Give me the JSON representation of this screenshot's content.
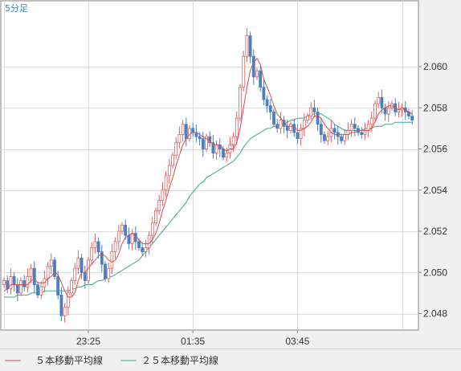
{
  "chart_data": {
    "type": "candlestick",
    "timeframe_label": "5分足",
    "x_tick_labels": [
      "23:25",
      "01:35",
      "03:45"
    ],
    "y_ticks": [
      2.048,
      2.05,
      2.052,
      2.054,
      2.056,
      2.058,
      2.06
    ],
    "y_tick_labels": [
      "2.048",
      "2.050",
      "2.052",
      "2.054",
      "2.056",
      "2.058",
      "2.060"
    ],
    "ylim": [
      2.0472,
      2.0632
    ],
    "colors": {
      "up": "#e06060",
      "down": "#4a7fc0",
      "ma5": "#d05050",
      "ma25": "#3aaa8a",
      "plot_bg": "#ffffff",
      "grid": "#dcdcdc"
    },
    "legend": [
      {
        "name": "５本移動平均線",
        "color": "#d05050"
      },
      {
        "name": "２５本移動平均線",
        "color": "#3aaa8a"
      }
    ],
    "close": [
      2.0496,
      2.0492,
      2.0498,
      2.0494,
      2.049,
      2.0496,
      2.0493,
      2.0498,
      2.0502,
      2.0494,
      2.0489,
      2.0493,
      2.0497,
      2.0503,
      2.0506,
      2.0498,
      2.0489,
      2.0479,
      2.0483,
      2.049,
      2.0496,
      2.0502,
      2.0507,
      2.05,
      2.0496,
      2.0506,
      2.0512,
      2.0515,
      2.051,
      2.0504,
      2.0497,
      2.0502,
      2.051,
      2.0515,
      2.052,
      2.0523,
      2.0518,
      2.0514,
      2.0519,
      2.0515,
      2.0512,
      2.051,
      2.0512,
      2.0518,
      2.0524,
      2.053,
      2.0535,
      2.054,
      2.0547,
      2.0552,
      2.0557,
      2.0563,
      2.0567,
      2.0572,
      2.0565,
      2.057,
      2.0568,
      2.0566,
      2.0565,
      2.056,
      2.0566,
      2.0563,
      2.0558,
      2.0562,
      2.056,
      2.0556,
      2.0558,
      2.0562,
      2.0566,
      2.0575,
      2.059,
      2.0605,
      2.0615,
      2.0605,
      2.0595,
      2.0598,
      2.059,
      2.0584,
      2.0581,
      2.0578,
      2.0572,
      2.057,
      2.0574,
      2.0571,
      2.0569,
      2.0572,
      2.0568,
      2.0565,
      2.057,
      2.0574,
      2.0576,
      2.058,
      2.0578,
      2.0572,
      2.0567,
      2.0564,
      2.0566,
      2.057,
      2.0568,
      2.0566,
      2.0564,
      2.0567,
      2.0569,
      2.0572,
      2.057,
      2.0568,
      2.0567,
      2.0569,
      2.0572,
      2.0575,
      2.0582,
      2.0585,
      2.058,
      2.0577,
      2.058,
      2.0582,
      2.0578,
      2.0579,
      2.058,
      2.0578,
      2.0576,
      2.0574
    ],
    "ma5": [
      2.0491,
      2.0492,
      2.0494,
      2.0494,
      2.0494,
      2.0494,
      2.0494,
      2.0494,
      2.0496,
      2.0497,
      2.0495,
      2.0495,
      2.0495,
      2.0497,
      2.0498,
      2.05,
      2.0499,
      2.0495,
      2.0491,
      2.0488,
      2.0488,
      2.049,
      2.0496,
      2.05,
      2.05,
      2.0502,
      2.0504,
      2.0506,
      2.0508,
      2.0509,
      2.0508,
      2.0506,
      2.0505,
      2.0506,
      2.0509,
      2.0514,
      2.0517,
      2.0518,
      2.0519,
      2.0518,
      2.0516,
      2.0514,
      2.0514,
      2.0514,
      2.0516,
      2.0519,
      2.0524,
      2.053,
      2.0535,
      2.0541,
      2.0546,
      2.0552,
      2.0557,
      2.0562,
      2.0565,
      2.0567,
      2.0568,
      2.0568,
      2.0567,
      2.0566,
      2.0565,
      2.0564,
      2.0562,
      2.0562,
      2.0562,
      2.056,
      2.0559,
      2.056,
      2.056,
      2.0563,
      2.057,
      2.058,
      2.059,
      2.0598,
      2.0602,
      2.0604,
      2.0601,
      2.0594,
      2.059,
      2.0586,
      2.0581,
      2.0577,
      2.0575,
      2.0573,
      2.0571,
      2.0571,
      2.0571,
      2.0569,
      2.0569,
      2.057,
      2.0571,
      2.0573,
      2.0576,
      2.0576,
      2.0575,
      2.0572,
      2.057,
      2.0568,
      2.0567,
      2.0567,
      2.0567,
      2.0567,
      2.0567,
      2.0568,
      2.0568,
      2.0569,
      2.0569,
      2.0569,
      2.0569,
      2.057,
      2.0573,
      2.0577,
      2.0579,
      2.058,
      2.0581,
      2.0581,
      2.058,
      2.0579,
      2.058,
      2.0579,
      2.0578,
      2.0577
    ],
    "ma25": [
      2.0488,
      2.0488,
      2.0488,
      2.0488,
      2.0489,
      2.0489,
      2.0489,
      2.0489,
      2.049,
      2.049,
      2.049,
      2.049,
      2.0491,
      2.0491,
      2.0491,
      2.0491,
      2.0491,
      2.0491,
      2.0491,
      2.0491,
      2.0492,
      2.0492,
      2.0493,
      2.0493,
      2.0494,
      2.0494,
      2.0494,
      2.0495,
      2.0496,
      2.0496,
      2.0497,
      2.0498,
      2.0498,
      2.0499,
      2.05,
      2.0501,
      2.0502,
      2.0503,
      2.0504,
      2.0505,
      2.0506,
      2.0508,
      2.051,
      2.0512,
      2.0514,
      2.0516,
      2.0518,
      2.052,
      2.0522,
      2.0524,
      2.0526,
      2.0528,
      2.053,
      2.0532,
      2.0534,
      2.0537,
      2.0539,
      2.0541,
      2.0543,
      2.0544,
      2.0546,
      2.0547,
      2.0548,
      2.0549,
      2.055,
      2.0551,
      2.0552,
      2.0553,
      2.0554,
      2.0556,
      2.0558,
      2.0561,
      2.0563,
      2.0565,
      2.0566,
      2.0567,
      2.0568,
      2.0569,
      2.057,
      2.057,
      2.0571,
      2.0571,
      2.0572,
      2.0572,
      2.0573,
      2.0574,
      2.0574,
      2.0575,
      2.0575,
      2.0575,
      2.0576,
      2.0577,
      2.0577,
      2.0577,
      2.0577,
      2.0576,
      2.0575,
      2.0574,
      2.0572,
      2.0571,
      2.057,
      2.0569,
      2.0569,
      2.0569,
      2.0569,
      2.0569,
      2.0569,
      2.057,
      2.057,
      2.057,
      2.0571,
      2.0571,
      2.0571,
      2.0572,
      2.0572,
      2.0572,
      2.0573,
      2.0573,
      2.0573,
      2.0573,
      2.0573,
      2.0573
    ]
  }
}
